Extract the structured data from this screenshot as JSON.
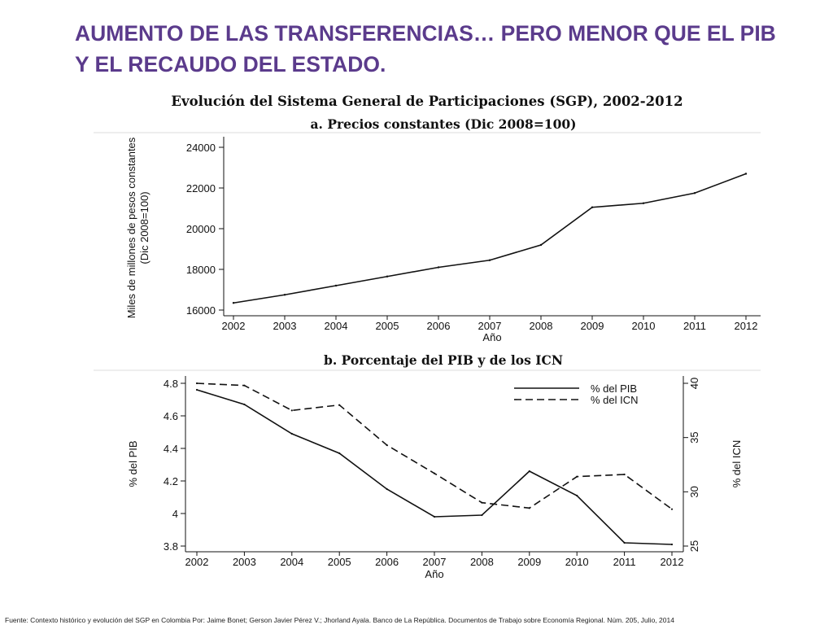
{
  "slide": {
    "title": "AUMENTO DE LAS TRANSFERENCIAS… PERO MENOR QUE EL PIB Y EL RECAUDO DEL ESTADO.",
    "source": "Fuente: Contexto histórico y evolución del SGP en Colombia Por: Jaime Bonet; Gerson Javier Pérez V.; Jhorland Ayala. Banco de La República. Documentos de Trabajo sobre Economía Regional. Núm. 205, Julio, 2014"
  },
  "figure": {
    "title": "Evolución del Sistema General de Participaciones (SGP), 2002-2012"
  },
  "colors": {
    "title": "#5b3b8c",
    "line": "#111111"
  },
  "chart_data": [
    {
      "type": "line",
      "title": "a.   Precios constantes (Dic 2008=100)",
      "xlabel": "Año",
      "ylabel": "Miles de millones de pesos constantes",
      "ylabel2": "(Dic 2008=100)",
      "x": [
        2002,
        2003,
        2004,
        2005,
        2006,
        2007,
        2008,
        2009,
        2010,
        2011,
        2012
      ],
      "xticks": [
        "2002",
        "2003",
        "2004",
        "2005",
        "2006",
        "2007",
        "2008",
        "2009",
        "2010",
        "2011",
        "2012"
      ],
      "ylim": [
        16000,
        24000
      ],
      "yticks": [
        "16000",
        "18000",
        "20000",
        "22000",
        "24000"
      ],
      "grid": false,
      "series": [
        {
          "style": "solid",
          "values": [
            16350,
            16750,
            17200,
            17650,
            18100,
            18450,
            19200,
            21050,
            21250,
            21750,
            22700
          ]
        }
      ]
    },
    {
      "type": "line",
      "title": "b.   Porcentaje del PIB y de los ICN",
      "xlabel": "Año",
      "ylabel": "% del PIB",
      "ylabel_right": "% del ICN",
      "x": [
        2002,
        2003,
        2004,
        2005,
        2006,
        2007,
        2008,
        2009,
        2010,
        2011,
        2012
      ],
      "xticks": [
        "2002",
        "2003",
        "2004",
        "2005",
        "2006",
        "2007",
        "2008",
        "2009",
        "2010",
        "2011",
        "2012"
      ],
      "ylim": [
        3.8,
        4.8
      ],
      "yticks": [
        "3.8",
        "4",
        "4.2",
        "4.4",
        "4.6",
        "4.8"
      ],
      "ylim_right": [
        25,
        40
      ],
      "yticks_right": [
        "25",
        "30",
        "35",
        "40"
      ],
      "legend_position": "top-right",
      "grid": false,
      "series": [
        {
          "name": "% del PIB",
          "axis": "left",
          "style": "solid",
          "values": [
            4.76,
            4.67,
            4.49,
            4.37,
            4.15,
            3.98,
            3.99,
            4.26,
            4.11,
            3.82,
            3.81
          ]
        },
        {
          "name": "% del ICN",
          "axis": "right",
          "style": "dashed",
          "values": [
            40.0,
            39.8,
            37.5,
            38.0,
            34.3,
            31.7,
            29.0,
            28.5,
            31.4,
            31.6,
            28.4
          ]
        }
      ]
    }
  ]
}
